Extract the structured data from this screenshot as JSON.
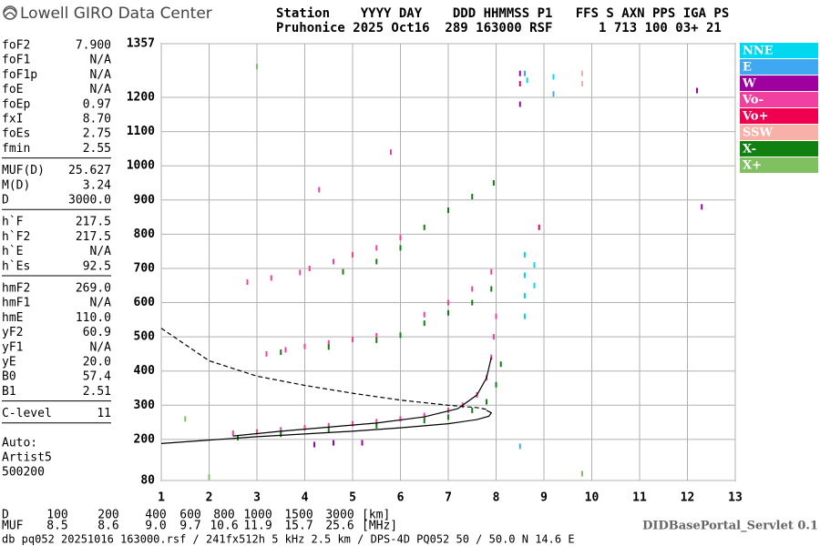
{
  "header": {
    "logo": "Lowell GIRO Data Center",
    "line1": "Station    YYYY DAY    DDD HHMMSS P1   FFS S AXN PPS IGA PS",
    "line2": "Pruhonice 2025 Oct16  289 163000 RSF      1 713 100 03+ 21"
  },
  "params": {
    "groups": [
      [
        [
          "foF2",
          "7.900"
        ],
        [
          "foF1",
          "N/A"
        ],
        [
          "foF1p",
          "N/A"
        ],
        [
          "foE",
          "N/A"
        ],
        [
          "foEp",
          "0.97"
        ],
        [
          "fxI",
          "8.70"
        ],
        [
          "foEs",
          "2.75"
        ],
        [
          "fmin",
          "2.55"
        ]
      ],
      [
        [
          "MUF(D)",
          "25.627"
        ],
        [
          "M(D)",
          "3.24"
        ],
        [
          "D",
          "3000.0"
        ]
      ],
      [
        [
          "h`F",
          "217.5"
        ],
        [
          "h`F2",
          "217.5"
        ],
        [
          "h`E",
          "N/A"
        ],
        [
          "h`Es",
          "92.5"
        ]
      ],
      [
        [
          "hmF2",
          "269.0"
        ],
        [
          "hmF1",
          "N/A"
        ],
        [
          "hmE",
          "110.0"
        ],
        [
          "yF2",
          "60.9"
        ],
        [
          "yF1",
          "N/A"
        ],
        [
          "yE",
          "20.0"
        ],
        [
          "B0",
          "57.4"
        ],
        [
          "B1",
          "2.51"
        ]
      ],
      [
        [
          "C-level",
          "11"
        ]
      ]
    ],
    "auto": [
      "Auto:",
      "Artist5",
      "500200"
    ]
  },
  "muf_table": [
    {
      "label": "D",
      "values": [
        "100",
        "200",
        "400",
        "600",
        "800",
        "1000",
        "1500",
        "3000"
      ],
      "unit": "[km]"
    },
    {
      "label": "MUF",
      "values": [
        "8.5",
        "8.6",
        "9.0",
        "9.7",
        "10.6",
        "11.9",
        "15.7",
        "25.6"
      ],
      "unit": "[MHz]"
    }
  ],
  "footer": {
    "file": "db pq052 20251016 163000.rsf / 241fx512h 5 kHz 2.5 km / DPS-4D PQ052 50 / 50.0 N 14.6 E",
    "servlet": "DIDBasePortal_Servlet 0.1"
  },
  "chart_data": {
    "type": "scatter",
    "xlim": [
      1,
      13
    ],
    "ylim": [
      80,
      1357
    ],
    "xticks": [
      1,
      2,
      3,
      4,
      5,
      6,
      7,
      8,
      9,
      10,
      11,
      12,
      13
    ],
    "yticks": [
      80,
      200,
      300,
      400,
      500,
      600,
      700,
      800,
      900,
      1000,
      1100,
      1200,
      1357
    ],
    "grid": true,
    "series": [
      {
        "name": "NNE",
        "color": "#00d8f0",
        "x": [
          8.6,
          8.6,
          8.6,
          8.6,
          8.8,
          8.8,
          8.65,
          9.2
        ],
        "y": [
          560,
          620,
          680,
          740,
          650,
          710,
          1250,
          1260
        ]
      },
      {
        "name": "E",
        "color": "#40a8f0",
        "x": [
          8.6,
          9.2,
          8.5
        ],
        "y": [
          1270,
          1210,
          180
        ]
      },
      {
        "name": "W",
        "color": "#a000a0",
        "x": [
          8.5,
          8.5,
          12.2,
          12.3,
          5.2,
          4.2,
          4.6
        ],
        "y": [
          1270,
          1180,
          1220,
          880,
          190,
          185,
          190
        ]
      },
      {
        "name": "Vo-",
        "color": "#f040a0",
        "x": [
          2.5,
          3,
          3.5,
          4,
          4.5,
          5,
          5.5,
          6,
          6.5,
          7,
          7.3,
          7.6,
          7.8,
          7.9,
          7.95,
          8.0,
          3.2,
          3.6,
          4,
          4.5,
          5,
          5.5,
          6.5,
          7,
          7.5,
          7.9,
          2.8,
          3.3,
          3.9,
          4.1,
          4.6,
          5,
          5.5,
          6.0,
          5.8,
          4.3
        ],
        "y": [
          218,
          222,
          228,
          234,
          240,
          246,
          252,
          260,
          270,
          285,
          300,
          330,
          380,
          440,
          500,
          560,
          450,
          462,
          472,
          482,
          492,
          503,
          565,
          600,
          640,
          690,
          660,
          672,
          688,
          700,
          720,
          740,
          760,
          790,
          1040,
          930
        ]
      },
      {
        "name": "Vo+",
        "color": "#f00050",
        "x": [
          8.5,
          8.9
        ],
        "y": [
          1240,
          820
        ]
      },
      {
        "name": "SSW",
        "color": "#f8b0a8",
        "x": [
          9.8,
          9.8
        ],
        "y": [
          1270,
          1240
        ]
      },
      {
        "name": "X-",
        "color": "#108010",
        "x": [
          2.6,
          3.5,
          4.5,
          5.5,
          6.5,
          7,
          7.5,
          7.8,
          8.0,
          8.1,
          3.5,
          4.5,
          5.5,
          6,
          6.5,
          7,
          7.5,
          7.9,
          4.8,
          5.5,
          6,
          6.5,
          7,
          7.5,
          7.95
        ],
        "y": [
          205,
          215,
          228,
          240,
          255,
          265,
          285,
          310,
          360,
          420,
          455,
          470,
          490,
          505,
          540,
          570,
          600,
          640,
          690,
          720,
          760,
          820,
          870,
          910,
          950
        ]
      },
      {
        "name": "X+",
        "color": "#80c060",
        "x": [
          9.8,
          1.5,
          3.0,
          2.0
        ],
        "y": [
          100,
          260,
          1290,
          90
        ]
      }
    ],
    "lines": [
      {
        "style": "solid",
        "color": "#000000",
        "x": [
          1.0,
          2,
          3,
          4,
          5,
          6,
          7,
          7.6,
          7.85,
          7.9,
          7.8
        ],
        "y": [
          188,
          198,
          208,
          216,
          224,
          234,
          246,
          258,
          268,
          278,
          285
        ]
      },
      {
        "style": "solid",
        "color": "#000000",
        "x": [
          2.5,
          3.5,
          4.5,
          5.5,
          6.5,
          7.2,
          7.6,
          7.8,
          7.9
        ],
        "y": [
          210,
          224,
          236,
          248,
          266,
          290,
          330,
          380,
          440
        ]
      },
      {
        "style": "dashed",
        "color": "#000000",
        "x": [
          1.0,
          2,
          3,
          4,
          5,
          6,
          7,
          7.6,
          7.8
        ],
        "y": [
          525,
          430,
          385,
          358,
          335,
          315,
          300,
          293,
          288
        ]
      }
    ]
  }
}
